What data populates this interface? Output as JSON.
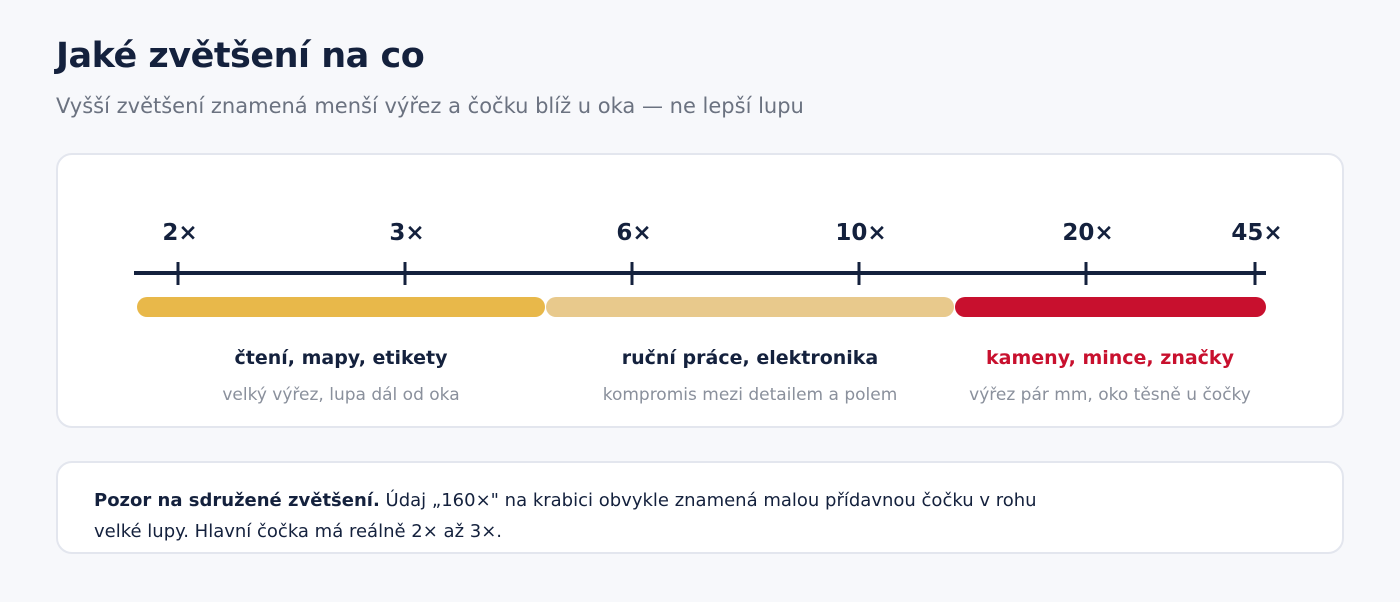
{
  "header": {
    "title": "Jaké zvětšení na co",
    "subtitle": "Vyšší zvětšení znamená menší výřez a čočku blíž u oka — ne lepší lupu"
  },
  "scale": {
    "ticks": [
      "2×",
      "3×",
      "6×",
      "10×",
      "20×",
      "45×"
    ]
  },
  "ranges": [
    {
      "label": "čtení, mapy, etikety",
      "note": "velký výřez, lupa dál od oka",
      "color": "#e8b84a"
    },
    {
      "label": "ruční práce, elektronika",
      "note": "kompromis mezi detailem a polem",
      "color": "#e8c98c"
    },
    {
      "label": "kameny, mince, značky",
      "note": "výřez pár mm, oko těsně u čočky",
      "color": "#c8102e"
    }
  ],
  "callout": {
    "lead": "Pozor na sdružené zvětšení.",
    "text": "Údaj „160×\" na krabici obvykle znamená malou přídavnou čočku v rohu velké lupy. Hlavní čočka má reálně 2× až 3×."
  }
}
